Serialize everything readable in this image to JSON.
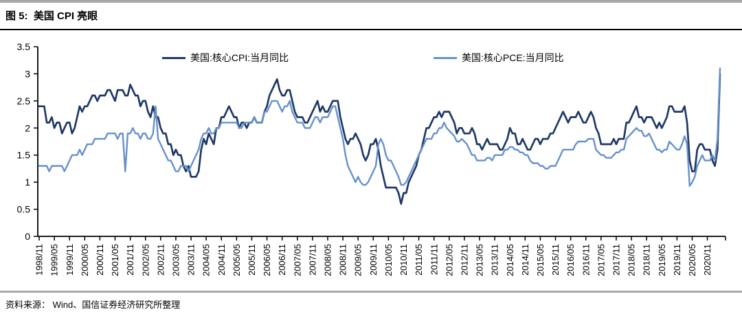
{
  "header": {
    "title": "图 5:  美国 CPI 亮眼"
  },
  "footer": {
    "source": "资料来源： Wind、国信证券经济研究所整理"
  },
  "chart_data": {
    "type": "line",
    "title": "图 5: 美国 CPI 亮眼",
    "xlabel": "",
    "ylabel": "",
    "ylim": [
      0,
      3.5
    ],
    "ytick_labels": [
      "0",
      "0.5",
      "1",
      "1.5",
      "2",
      "2.5",
      "3",
      "3.5"
    ],
    "x_start": "1998/11",
    "x_end": "2021/04",
    "x_frequency": "monthly",
    "xtick_interval_months": 6,
    "xtick_labels": [
      "1998/11",
      "1999/05",
      "1999/11",
      "2000/05",
      "2000/11",
      "2001/05",
      "2001/11",
      "2002/05",
      "2002/11",
      "2003/05",
      "2003/11",
      "2004/05",
      "2004/11",
      "2005/05",
      "2005/11",
      "2006/05",
      "2006/11",
      "2007/05",
      "2007/11",
      "2008/05",
      "2008/11",
      "2009/05",
      "2009/11",
      "2010/05",
      "2010/11",
      "2011/05",
      "2011/11",
      "2012/05",
      "2012/11",
      "2013/05",
      "2013/11",
      "2014/05",
      "2014/11",
      "2015/05",
      "2015/11",
      "2016/05",
      "2016/11",
      "2017/05",
      "2017/11",
      "2018/05",
      "2018/11",
      "2019/05",
      "2019/11",
      "2020/05",
      "2020/11"
    ],
    "grid": false,
    "legend_position": "top-inside",
    "axis_color": "#000000",
    "series": [
      {
        "name": "美国:核心CPI:当月同比",
        "color": "#1F3864",
        "values": [
          2.4,
          2.4,
          2.4,
          2.1,
          2.1,
          2.2,
          2.0,
          2.1,
          2.1,
          1.9,
          2.0,
          2.1,
          2.1,
          1.9,
          2.0,
          2.2,
          2.4,
          2.3,
          2.4,
          2.4,
          2.5,
          2.6,
          2.6,
          2.5,
          2.6,
          2.6,
          2.6,
          2.7,
          2.7,
          2.6,
          2.5,
          2.7,
          2.7,
          2.7,
          2.6,
          2.6,
          2.8,
          2.7,
          2.6,
          2.6,
          2.4,
          2.5,
          2.5,
          2.3,
          2.2,
          2.4,
          2.2,
          2.2,
          2.0,
          1.9,
          1.9,
          1.7,
          1.7,
          1.5,
          1.6,
          1.5,
          1.5,
          1.3,
          1.2,
          1.3,
          1.1,
          1.1,
          1.1,
          1.2,
          1.6,
          1.8,
          1.7,
          1.9,
          1.8,
          1.7,
          2.0,
          2.0,
          2.2,
          2.2,
          2.3,
          2.4,
          2.3,
          2.2,
          2.2,
          2.0,
          2.1,
          2.1,
          2.0,
          2.1,
          2.1,
          2.2,
          2.1,
          2.1,
          2.1,
          2.3,
          2.4,
          2.6,
          2.7,
          2.8,
          2.9,
          2.7,
          2.6,
          2.6,
          2.7,
          2.7,
          2.5,
          2.3,
          2.2,
          2.2,
          2.2,
          2.1,
          2.1,
          2.2,
          2.3,
          2.4,
          2.5,
          2.3,
          2.4,
          2.3,
          2.3,
          2.4,
          2.5,
          2.5,
          2.5,
          2.2,
          2.0,
          1.8,
          1.7,
          1.8,
          1.8,
          1.9,
          1.8,
          1.7,
          1.5,
          1.4,
          1.5,
          1.7,
          1.7,
          1.8,
          1.6,
          1.3,
          1.1,
          0.9,
          0.9,
          0.9,
          0.9,
          0.9,
          0.8,
          0.6,
          0.8,
          0.8,
          1.0,
          1.1,
          1.2,
          1.3,
          1.5,
          1.6,
          1.8,
          2.0,
          2.0,
          2.1,
          2.2,
          2.2,
          2.3,
          2.2,
          2.3,
          2.3,
          2.3,
          2.2,
          2.1,
          1.9,
          2.0,
          2.0,
          1.9,
          1.9,
          1.9,
          2.0,
          1.9,
          1.7,
          1.7,
          1.6,
          1.7,
          1.8,
          1.7,
          1.7,
          1.7,
          1.7,
          1.6,
          1.6,
          1.7,
          1.8,
          2.0,
          1.9,
          1.9,
          1.7,
          1.7,
          1.8,
          1.7,
          1.6,
          1.6,
          1.7,
          1.8,
          1.8,
          1.7,
          1.8,
          1.8,
          1.8,
          1.9,
          1.9,
          2.0,
          2.1,
          2.2,
          2.3,
          2.2,
          2.1,
          2.2,
          2.2,
          2.2,
          2.3,
          2.2,
          2.1,
          2.1,
          2.2,
          2.3,
          2.2,
          2.0,
          1.9,
          1.7,
          1.7,
          1.7,
          1.7,
          1.7,
          1.8,
          1.7,
          1.8,
          1.8,
          1.8,
          2.1,
          2.1,
          2.2,
          2.3,
          2.4,
          2.2,
          2.2,
          2.1,
          2.2,
          2.2,
          2.2,
          2.1,
          2.0,
          2.1,
          2.0,
          2.1,
          2.2,
          2.4,
          2.4,
          2.3,
          2.3,
          2.3,
          2.3,
          2.4,
          2.1,
          1.4,
          1.2,
          1.2,
          1.6,
          1.7,
          1.7,
          1.6,
          1.6,
          1.6,
          1.4,
          1.3,
          1.6,
          3.0
        ]
      },
      {
        "name": "美国:核心PCE:当月同比",
        "color": "#6591CB",
        "values": [
          1.3,
          1.3,
          1.3,
          1.3,
          1.2,
          1.3,
          1.3,
          1.3,
          1.3,
          1.3,
          1.2,
          1.3,
          1.4,
          1.5,
          1.5,
          1.5,
          1.6,
          1.5,
          1.6,
          1.7,
          1.7,
          1.7,
          1.8,
          1.8,
          1.8,
          1.8,
          1.8,
          1.9,
          1.9,
          1.9,
          1.9,
          1.8,
          1.9,
          1.9,
          1.2,
          1.9,
          1.9,
          2.0,
          1.9,
          1.9,
          1.8,
          1.9,
          1.9,
          1.8,
          1.8,
          1.9,
          2.4,
          1.8,
          1.7,
          1.6,
          1.5,
          1.4,
          1.4,
          1.3,
          1.2,
          1.2,
          1.3,
          1.3,
          1.3,
          1.2,
          1.3,
          1.4,
          1.5,
          1.6,
          1.8,
          1.9,
          1.9,
          2.0,
          1.9,
          1.9,
          2.0,
          2.0,
          2.1,
          2.1,
          2.1,
          2.1,
          2.1,
          2.1,
          2.1,
          2.0,
          2.0,
          2.1,
          2.1,
          2.1,
          2.1,
          2.2,
          2.1,
          2.1,
          2.1,
          2.3,
          2.3,
          2.4,
          2.5,
          2.5,
          2.5,
          2.4,
          2.3,
          2.4,
          2.4,
          2.5,
          2.3,
          2.2,
          2.1,
          2.1,
          2.1,
          2.0,
          2.0,
          2.0,
          2.1,
          2.2,
          2.2,
          2.1,
          2.2,
          2.2,
          2.2,
          2.3,
          2.4,
          2.4,
          2.2,
          2.0,
          1.8,
          1.5,
          1.3,
          1.2,
          1.1,
          1.0,
          1.1,
          1.0,
          0.95,
          0.95,
          1.0,
          1.1,
          1.2,
          1.3,
          1.7,
          1.8,
          1.7,
          1.5,
          1.4,
          1.4,
          1.3,
          1.2,
          1.1,
          0.95,
          0.95,
          1.0,
          1.1,
          1.2,
          1.3,
          1.4,
          1.5,
          1.6,
          1.7,
          1.8,
          1.8,
          1.8,
          1.9,
          1.9,
          2.0,
          2.0,
          2.1,
          2.0,
          1.95,
          1.9,
          1.85,
          1.75,
          1.75,
          1.8,
          1.75,
          1.7,
          1.6,
          1.5,
          1.5,
          1.4,
          1.4,
          1.4,
          1.4,
          1.45,
          1.45,
          1.4,
          1.5,
          1.5,
          1.5,
          1.5,
          1.6,
          1.6,
          1.65,
          1.65,
          1.6,
          1.6,
          1.55,
          1.55,
          1.5,
          1.5,
          1.4,
          1.35,
          1.35,
          1.35,
          1.3,
          1.3,
          1.25,
          1.25,
          1.3,
          1.3,
          1.3,
          1.4,
          1.5,
          1.6,
          1.6,
          1.6,
          1.6,
          1.6,
          1.7,
          1.75,
          1.75,
          1.75,
          1.75,
          1.8,
          1.8,
          1.8,
          1.6,
          1.55,
          1.5,
          1.5,
          1.45,
          1.45,
          1.45,
          1.5,
          1.55,
          1.55,
          1.6,
          1.6,
          1.8,
          1.85,
          1.9,
          1.95,
          2.0,
          1.95,
          1.95,
          1.85,
          1.85,
          1.9,
          1.8,
          1.7,
          1.6,
          1.6,
          1.55,
          1.6,
          1.6,
          1.75,
          1.7,
          1.65,
          1.6,
          1.6,
          1.7,
          1.85,
          1.7,
          0.93,
          1.0,
          1.1,
          1.3,
          1.4,
          1.5,
          1.4,
          1.4,
          1.4,
          1.5,
          1.4,
          1.8,
          3.1
        ]
      }
    ]
  }
}
